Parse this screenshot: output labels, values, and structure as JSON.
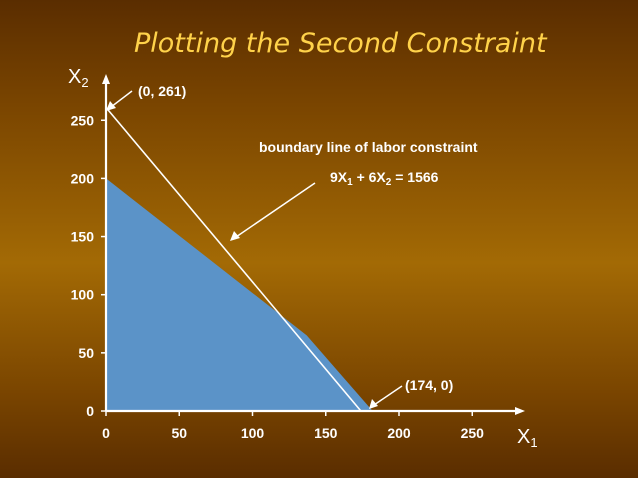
{
  "title": "Plotting the Second Constraint",
  "axes": {
    "x": {
      "name": "X",
      "subscript": "1",
      "ticks": [
        "0",
        "50",
        "100",
        "150",
        "200",
        "250"
      ]
    },
    "y": {
      "name": "X",
      "subscript": "2",
      "ticks": [
        "0",
        "50",
        "100",
        "150",
        "200",
        "250"
      ]
    }
  },
  "annotations": {
    "point_top": "(0, 261)",
    "point_bottom": "(174, 0)",
    "boundary_label": "boundary line of labor constraint",
    "equation": {
      "p1": "9X",
      "s1": "1",
      "p2": " + 6X",
      "s2": "2",
      "p3": " = 1566"
    }
  },
  "colors": {
    "background": "#7a4500",
    "title": "#ffd24a",
    "region_fill": "#5b93c8",
    "lines": "#ffffff"
  },
  "chart_data": {
    "type": "line",
    "xlim": [
      0,
      250
    ],
    "ylim": [
      0,
      250
    ],
    "xticks": [
      0,
      50,
      100,
      150,
      200,
      250
    ],
    "yticks": [
      0,
      50,
      100,
      150,
      200,
      250
    ],
    "series": [
      {
        "points": [
          [
            0,
            261
          ],
          [
            174,
            0
          ]
        ]
      }
    ],
    "shaded_region": {
      "vertices": [
        [
          0,
          0
        ],
        [
          0,
          200
        ],
        [
          137,
          65
        ],
        [
          182,
          0
        ]
      ]
    },
    "annotations": [
      {
        "text": "(0, 261)",
        "x": 0,
        "y": 261
      },
      {
        "text": "(174, 0)",
        "x": 174,
        "y": 0
      },
      {
        "text": "boundary line of labor constraint"
      },
      {
        "text": "9X1 + 6X2 = 1566"
      }
    ]
  }
}
